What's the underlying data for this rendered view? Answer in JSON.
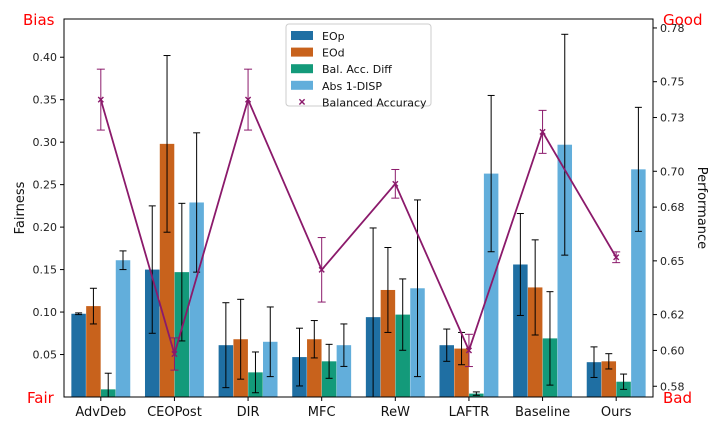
{
  "chart_data": {
    "type": "bar",
    "categories": [
      "AdvDeb",
      "CEOPost",
      "DIR",
      "MFC",
      "ReW",
      "LAFTR",
      "Baseline",
      "Ours"
    ],
    "ylabel": "Fairness",
    "y2label": "Performance",
    "ylim": [
      0,
      0.445
    ],
    "y2lim": [
      0.574,
      0.785
    ],
    "yticks": [
      "0.05",
      "0.10",
      "0.15",
      "0.20",
      "0.25",
      "0.30",
      "0.35",
      "0.40"
    ],
    "y2ticks": [
      "0.58",
      "0.60",
      "0.62",
      "0.65",
      "0.68",
      "0.70",
      "0.73",
      "0.75",
      "0.78"
    ],
    "corner_labels": {
      "top_left": "Bias",
      "bottom_left": "Fair",
      "top_right": "Good",
      "bottom_right": "Bad"
    },
    "legend_position": "top-center",
    "series": [
      {
        "name": "EOp",
        "color": "#1f6fa3",
        "values": [
          0.098,
          0.15,
          0.061,
          0.047,
          0.094,
          0.061,
          0.156,
          0.041
        ],
        "errors": [
          0.001,
          0.075,
          0.05,
          0.034,
          0.105,
          0.019,
          0.06,
          0.018
        ]
      },
      {
        "name": "EOd",
        "color": "#c8621c",
        "values": [
          0.107,
          0.298,
          0.068,
          0.068,
          0.126,
          0.057,
          0.129,
          0.042
        ],
        "errors": [
          0.021,
          0.104,
          0.047,
          0.022,
          0.05,
          0.019,
          0.056,
          0.009
        ]
      },
      {
        "name": "Bal. Acc. Diff",
        "color": "#139a7a",
        "values": [
          0.009,
          0.147,
          0.029,
          0.042,
          0.097,
          0.004,
          0.069,
          0.018
        ],
        "errors": [
          0.019,
          0.081,
          0.024,
          0.02,
          0.042,
          0.002,
          0.055,
          0.009
        ]
      },
      {
        "name": "Abs 1-DISP",
        "color": "#62aedb",
        "values": [
          0.161,
          0.229,
          0.065,
          0.061,
          0.128,
          0.263,
          0.297,
          0.268
        ],
        "errors": [
          0.011,
          0.082,
          0.041,
          0.025,
          0.104,
          0.092,
          0.13,
          0.073
        ]
      }
    ],
    "line": {
      "name": "Balanced Accuracy",
      "color": "#8b1a6b",
      "values": [
        0.74,
        0.598,
        0.74,
        0.645,
        0.693,
        0.6,
        0.722,
        0.652
      ],
      "errors": [
        0.017,
        0.009,
        0.017,
        0.018,
        0.008,
        0.009,
        0.012,
        0.003
      ]
    }
  }
}
